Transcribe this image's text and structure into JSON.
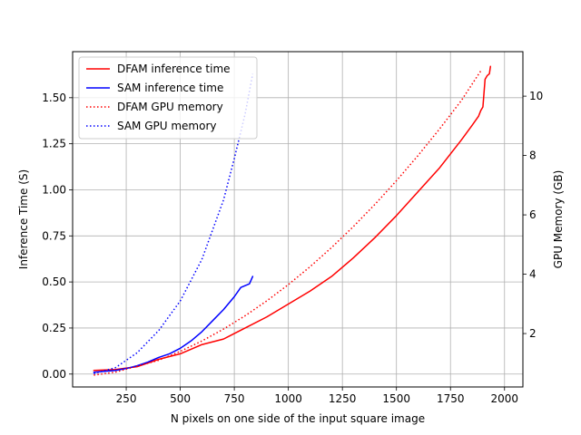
{
  "chart_data": {
    "type": "line",
    "xlabel": "N pixels on one side of the input square image",
    "ylabel": "Inference Time (S)",
    "y2label": "GPU Memory (GB)",
    "xlim": [
      2,
      2085
    ],
    "ylim": [
      -0.07,
      1.75
    ],
    "y2lim": [
      0.2,
      11.5
    ],
    "x_ticks": [
      250,
      500,
      750,
      1000,
      1250,
      1500,
      1750,
      2000
    ],
    "y_ticks": [
      0.0,
      0.25,
      0.5,
      0.75,
      1.0,
      1.25,
      1.5
    ],
    "y_tick_labels": [
      "0.00",
      "0.25",
      "0.50",
      "0.75",
      "1.00",
      "1.25",
      "1.50"
    ],
    "y2_ticks": [
      2,
      4,
      6,
      8,
      10
    ],
    "grid": true,
    "legend_position": "top-left",
    "series": [
      {
        "name": "DFAM inference time",
        "axis": "left",
        "style": "solid",
        "color": "#ff0000",
        "x": [
          100,
          200,
          300,
          400,
          500,
          600,
          700,
          800,
          900,
          1000,
          1100,
          1200,
          1300,
          1400,
          1500,
          1600,
          1700,
          1800,
          1850,
          1880,
          1890,
          1900,
          1910,
          1920,
          1930,
          1935
        ],
        "y": [
          0.02,
          0.025,
          0.04,
          0.08,
          0.11,
          0.16,
          0.19,
          0.25,
          0.31,
          0.38,
          0.45,
          0.53,
          0.63,
          0.74,
          0.86,
          0.99,
          1.12,
          1.27,
          1.35,
          1.4,
          1.43,
          1.45,
          1.6,
          1.62,
          1.63,
          1.67
        ]
      },
      {
        "name": "SAM inference time",
        "axis": "left",
        "style": "solid",
        "color": "#0000ff",
        "x": [
          100,
          150,
          200,
          250,
          300,
          350,
          400,
          450,
          500,
          550,
          600,
          650,
          700,
          750,
          780,
          800,
          820,
          835
        ],
        "y": [
          0.01,
          0.015,
          0.02,
          0.03,
          0.045,
          0.065,
          0.09,
          0.11,
          0.14,
          0.18,
          0.23,
          0.29,
          0.35,
          0.42,
          0.47,
          0.48,
          0.49,
          0.53
        ]
      },
      {
        "name": "DFAM GPU memory",
        "axis": "right",
        "style": "dotted",
        "color": "#ff0000",
        "x": [
          100,
          200,
          300,
          400,
          500,
          600,
          700,
          800,
          900,
          1000,
          1100,
          1200,
          1300,
          1400,
          1500,
          1600,
          1700,
          1800,
          1890
        ],
        "y": [
          0.6,
          0.7,
          0.9,
          1.1,
          1.4,
          1.75,
          2.15,
          2.6,
          3.1,
          3.65,
          4.25,
          4.9,
          5.6,
          6.35,
          7.15,
          8.0,
          8.9,
          9.85,
          10.85
        ]
      },
      {
        "name": "SAM GPU memory",
        "axis": "right",
        "style": "dotted",
        "color": "#0000ff",
        "x": [
          100,
          200,
          300,
          400,
          500,
          600,
          700,
          750,
          800,
          835
        ],
        "y": [
          0.65,
          0.85,
          1.35,
          2.1,
          3.1,
          4.5,
          6.5,
          7.9,
          9.4,
          10.75
        ]
      }
    ]
  }
}
